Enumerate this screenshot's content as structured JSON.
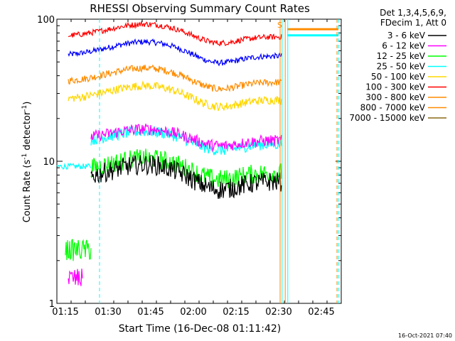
{
  "chart_data": {
    "type": "line",
    "title": "RHESSI Observing Summary Count Rates",
    "xlabel": "Start Time (16-Dec-08 01:11:42)",
    "ylabel_main": "Count Rate (s",
    "ylabel_sup1": "-1",
    "ylabel_mid": " detector",
    "ylabel_sup2": "-1",
    "ylabel_end": ")",
    "yscale": "log",
    "ylim": [
      1,
      100
    ],
    "xlim_minutes": [
      72,
      172
    ],
    "x_tick_labels": [
      "01:15",
      "01:30",
      "01:45",
      "02:00",
      "02:15",
      "02:30",
      "02:45"
    ],
    "x_tick_minutes": [
      75,
      90,
      105,
      120,
      135,
      150,
      165
    ],
    "y_tick_labels": [
      "1",
      "10",
      "100"
    ],
    "y_tick_values": [
      1,
      10,
      100
    ],
    "legend_header": [
      "Det 1,3,4,5,6,9,",
      "FDecim 1, Att 0"
    ],
    "legend_position": "right",
    "series": [
      {
        "name": "3 - 6 keV",
        "color": "#000000",
        "start": 84,
        "end": 151,
        "base": 7.2,
        "amp": 0.12,
        "noise": 0.07
      },
      {
        "name": "6 - 12 keV",
        "color": "#ff00ff",
        "start": 84,
        "end": 151,
        "base": 14.0,
        "amp": 0.08,
        "noise": 0.04
      },
      {
        "name": "12 - 25 keV",
        "color": "#00ff00",
        "start": 84,
        "end": 151,
        "base": 8.3,
        "amp": 0.1,
        "noise": 0.07
      },
      {
        "name": "25 - 50 keV",
        "color": "#00ffff",
        "start": 84,
        "end": 151,
        "base": 13.2,
        "amp": 0.09,
        "noise": 0.04
      },
      {
        "name": "50 - 100 keV",
        "color": "#ffd700",
        "start": 76,
        "end": 151,
        "base": 27.0,
        "amp": 0.1,
        "noise": 0.03
      },
      {
        "name": "100 - 300 keV",
        "color": "#ff0000",
        "start": 76,
        "end": 151,
        "base": 75.0,
        "amp": 0.09,
        "noise": 0.02
      },
      {
        "name": "300 - 800 keV",
        "color": "#ff8c00",
        "start": 76,
        "end": 151,
        "base": 36.0,
        "amp": 0.1,
        "noise": 0.025
      },
      {
        "name": "800 - 7000 keV",
        "color": "#ff8c00",
        "start": 76,
        "end": 151,
        "base": 36.0,
        "amp": 0.1,
        "noise": 0.0
      },
      {
        "name": "7000 - 15000 keV",
        "color": "#8b6914",
        "start": 76,
        "end": 151,
        "base": 36.0,
        "amp": 0.1,
        "noise": 0.0
      }
    ],
    "extra_traces": [
      {
        "color": "#0000ff",
        "start": 76,
        "end": 151,
        "base": 55.0,
        "amp": 0.1,
        "noise": 0.02
      },
      {
        "color": "#00ffff",
        "start": 72,
        "end": 84,
        "base": 9.2,
        "amp": 0.0,
        "noise": 0.02
      }
    ],
    "after_series": [
      {
        "color": "#ff8c00",
        "start": 153,
        "end": 171,
        "value": 85
      },
      {
        "color": "#00ffff",
        "start": 153,
        "end": 171,
        "value": 77
      }
    ],
    "pre_levels": [
      {
        "color": "#00ff00",
        "start": 75,
        "end": 84,
        "value": 2.4
      },
      {
        "color": "#ff00ff",
        "start": 76,
        "end": 81,
        "value": 1.5
      }
    ],
    "vertical_markers": [
      {
        "minute": 87,
        "color": "#00ffff",
        "dashed": true
      },
      {
        "minute": 150.5,
        "color": "#ff8c00",
        "dashed": false
      },
      {
        "minute": 151.2,
        "color": "#00ffff",
        "dashed": false
      },
      {
        "minute": 152.3,
        "color": "#ff8c00",
        "dashed": false
      },
      {
        "minute": 153.2,
        "color": "#00ffff",
        "dashed": false
      },
      {
        "minute": 170.5,
        "color": "#ff8c00",
        "dashed": true
      },
      {
        "minute": 171,
        "color": "#00ffff",
        "dashed": true
      }
    ],
    "s_marker": {
      "label": "S",
      "minute": 150.5,
      "color": "#ff8c00"
    }
  },
  "footer": {
    "timestamp": "16-Oct-2021 07:40"
  }
}
